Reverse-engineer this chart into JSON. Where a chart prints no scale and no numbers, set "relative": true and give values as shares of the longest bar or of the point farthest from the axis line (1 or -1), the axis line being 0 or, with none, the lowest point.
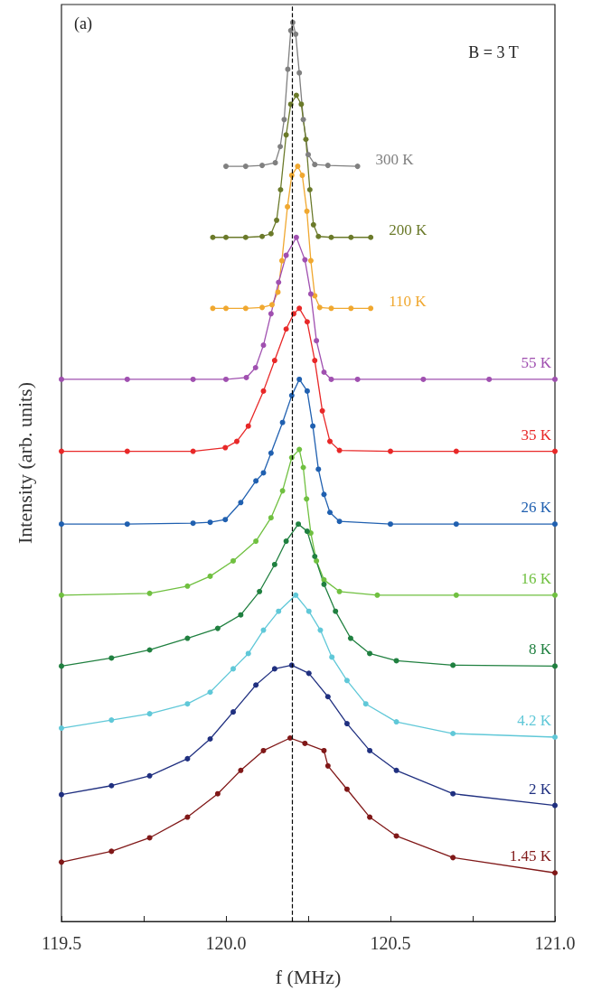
{
  "chart_data": {
    "type": "line",
    "xlabel": "f (MHz)",
    "ylabel": "Intensity (arb. units)",
    "relative": true,
    "annotations": [
      "(a)",
      "B = 3 T"
    ],
    "xlim": [
      119.5,
      121.0
    ],
    "xticks": [
      119.5,
      {
        "value": 119.75,
        "label": null
      },
      {
        "value": 120.0,
        "label": "120.0"
      },
      {
        "value": 120.25,
        "label": null
      },
      120.5,
      {
        "value": 120.75,
        "label": null
      },
      {
        "value": 121.0,
        "label": "121.0"
      }
    ],
    "legend": false,
    "grid": false,
    "marker": "circle",
    "line_style": "solid",
    "ref_lines": [
      {
        "axis": "x",
        "value": 120.2,
        "color": "#000000",
        "line_style": "dashed"
      }
    ],
    "series": [
      {
        "name": "300 K",
        "color": "#808080",
        "x": [
          120.0,
          120.06,
          120.11,
          120.15,
          120.165,
          120.177,
          120.188,
          120.197,
          120.203,
          120.212,
          120.223,
          120.235,
          120.25,
          120.27,
          120.31,
          120.4
        ],
        "values": [
          0.84,
          0.84,
          0.841,
          0.844,
          0.862,
          0.892,
          0.948,
          0.991,
          1.0,
          0.987,
          0.944,
          0.892,
          0.853,
          0.842,
          0.841,
          0.84
        ]
      },
      {
        "name": "200 K",
        "color": "#6b7a2a",
        "x": [
          119.96,
          120.0,
          120.06,
          120.11,
          120.137,
          120.154,
          120.166,
          120.183,
          120.197,
          120.214,
          120.229,
          120.243,
          120.255,
          120.266,
          120.281,
          120.32,
          120.38,
          120.44
        ],
        "values": [
          0.761,
          0.761,
          0.761,
          0.762,
          0.765,
          0.78,
          0.814,
          0.875,
          0.909,
          0.919,
          0.909,
          0.87,
          0.814,
          0.775,
          0.762,
          0.761,
          0.761,
          0.761
        ]
      },
      {
        "name": "110 K",
        "color": "#f0a830",
        "x": [
          119.96,
          120.0,
          120.06,
          120.11,
          120.14,
          120.158,
          120.17,
          120.187,
          120.2,
          120.218,
          120.232,
          120.246,
          120.258,
          120.27,
          120.285,
          120.32,
          120.38,
          120.44
        ],
        "values": [
          0.682,
          0.682,
          0.682,
          0.683,
          0.686,
          0.7,
          0.735,
          0.795,
          0.83,
          0.84,
          0.83,
          0.79,
          0.735,
          0.696,
          0.683,
          0.682,
          0.682,
          0.682
        ]
      },
      {
        "name": "55 K",
        "color": "#a050b0",
        "x": [
          119.5,
          119.7,
          119.9,
          120.0,
          120.062,
          120.09,
          120.114,
          120.137,
          120.16,
          120.183,
          120.214,
          120.24,
          120.258,
          120.275,
          120.298,
          120.32,
          120.4,
          120.6,
          120.8,
          121.0
        ],
        "values": [
          0.603,
          0.603,
          0.603,
          0.603,
          0.605,
          0.616,
          0.641,
          0.676,
          0.711,
          0.741,
          0.761,
          0.736,
          0.698,
          0.646,
          0.611,
          0.603,
          0.603,
          0.603,
          0.603,
          0.603
        ]
      },
      {
        "name": "35 K",
        "color": "#e82828",
        "x": [
          119.5,
          119.7,
          119.9,
          119.998,
          120.033,
          120.068,
          120.114,
          120.148,
          120.183,
          120.206,
          120.223,
          120.247,
          120.27,
          120.293,
          120.316,
          120.345,
          120.5,
          120.7,
          121.0
        ],
        "values": [
          0.523,
          0.523,
          0.523,
          0.527,
          0.534,
          0.551,
          0.59,
          0.624,
          0.659,
          0.676,
          0.682,
          0.667,
          0.624,
          0.568,
          0.534,
          0.524,
          0.523,
          0.523,
          0.523
        ]
      },
      {
        "name": "26 K",
        "color": "#2060b0",
        "x": [
          119.5,
          119.7,
          119.9,
          119.952,
          119.998,
          120.045,
          120.091,
          120.114,
          120.137,
          120.172,
          120.2,
          120.223,
          120.247,
          120.264,
          120.281,
          120.298,
          120.316,
          120.345,
          120.5,
          120.7,
          121.0
        ],
        "values": [
          0.442,
          0.442,
          0.443,
          0.444,
          0.447,
          0.466,
          0.49,
          0.499,
          0.521,
          0.555,
          0.585,
          0.603,
          0.59,
          0.551,
          0.503,
          0.475,
          0.455,
          0.445,
          0.442,
          0.442,
          0.442
        ]
      },
      {
        "name": "16 K",
        "color": "#70c040",
        "x": [
          119.5,
          119.768,
          119.883,
          119.952,
          120.022,
          120.091,
          120.137,
          120.172,
          120.2,
          120.223,
          120.235,
          120.245,
          120.258,
          120.275,
          120.298,
          120.345,
          120.46,
          120.7,
          121.0
        ],
        "values": [
          0.363,
          0.365,
          0.373,
          0.384,
          0.401,
          0.423,
          0.449,
          0.479,
          0.516,
          0.525,
          0.505,
          0.47,
          0.432,
          0.401,
          0.38,
          0.367,
          0.363,
          0.363,
          0.363
        ]
      },
      {
        "name": "8 K",
        "color": "#208040",
        "x": [
          119.5,
          119.652,
          119.768,
          119.883,
          119.975,
          120.045,
          120.102,
          120.148,
          120.183,
          120.22,
          120.247,
          120.27,
          120.298,
          120.333,
          120.379,
          120.437,
          120.518,
          120.69,
          121.0
        ],
        "values": [
          0.284,
          0.293,
          0.302,
          0.315,
          0.326,
          0.341,
          0.367,
          0.397,
          0.423,
          0.442,
          0.434,
          0.406,
          0.375,
          0.345,
          0.315,
          0.298,
          0.29,
          0.285,
          0.284
        ]
      },
      {
        "name": "4.2 K",
        "color": "#60c8d8",
        "x": [
          119.5,
          119.652,
          119.768,
          119.883,
          119.952,
          120.022,
          120.068,
          120.114,
          120.16,
          120.212,
          120.252,
          120.287,
          120.322,
          120.368,
          120.425,
          120.518,
          120.69,
          121.0
        ],
        "values": [
          0.215,
          0.224,
          0.231,
          0.242,
          0.255,
          0.281,
          0.298,
          0.324,
          0.345,
          0.363,
          0.345,
          0.324,
          0.294,
          0.268,
          0.242,
          0.222,
          0.209,
          0.205
        ]
      },
      {
        "name": "2 K",
        "color": "#203080",
        "x": [
          119.5,
          119.652,
          119.768,
          119.883,
          119.952,
          120.022,
          120.091,
          120.148,
          120.2,
          120.252,
          120.31,
          120.368,
          120.437,
          120.518,
          120.69,
          121.0
        ],
        "values": [
          0.141,
          0.151,
          0.162,
          0.181,
          0.203,
          0.233,
          0.263,
          0.281,
          0.285,
          0.276,
          0.25,
          0.22,
          0.19,
          0.168,
          0.142,
          0.129
        ]
      },
      {
        "name": "1.45 K",
        "color": "#801818",
        "x": [
          119.5,
          119.652,
          119.768,
          119.883,
          119.975,
          120.045,
          120.114,
          120.195,
          120.24,
          120.298,
          120.31,
          120.368,
          120.437,
          120.518,
          120.69,
          121.0
        ],
        "values": [
          0.066,
          0.078,
          0.093,
          0.116,
          0.142,
          0.168,
          0.19,
          0.204,
          0.198,
          0.19,
          0.173,
          0.147,
          0.116,
          0.095,
          0.071,
          0.054
        ]
      }
    ]
  }
}
